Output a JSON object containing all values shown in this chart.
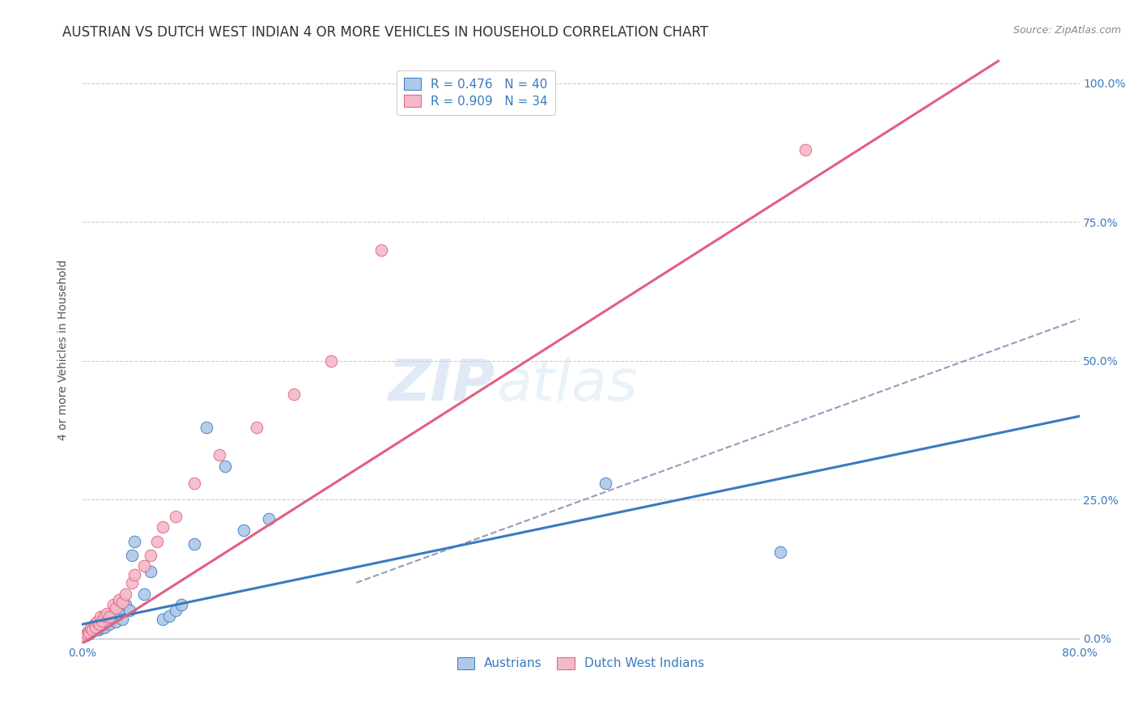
{
  "title": "AUSTRIAN VS DUTCH WEST INDIAN 4 OR MORE VEHICLES IN HOUSEHOLD CORRELATION CHART",
  "source": "Source: ZipAtlas.com",
  "ylabel": "4 or more Vehicles in Household",
  "xlim": [
    0.0,
    0.8
  ],
  "ylim": [
    -0.01,
    1.05
  ],
  "ytick_positions": [
    0.0,
    0.25,
    0.5,
    0.75,
    1.0
  ],
  "ytick_labels_right": [
    "0.0%",
    "25.0%",
    "50.0%",
    "75.0%",
    "100.0%"
  ],
  "legend_entries": [
    {
      "label": "R = 0.476   N = 40"
    },
    {
      "label": "R = 0.909   N = 34"
    }
  ],
  "legend_bottom": [
    "Austrians",
    "Dutch West Indians"
  ],
  "watermark_zip": "ZIP",
  "watermark_atlas": "atlas",
  "austrians_x": [
    0.003,
    0.005,
    0.006,
    0.007,
    0.008,
    0.009,
    0.01,
    0.011,
    0.012,
    0.013,
    0.014,
    0.015,
    0.016,
    0.017,
    0.018,
    0.019,
    0.02,
    0.022,
    0.024,
    0.025,
    0.027,
    0.03,
    0.032,
    0.035,
    0.038,
    0.04,
    0.042,
    0.05,
    0.055,
    0.065,
    0.07,
    0.075,
    0.08,
    0.09,
    0.1,
    0.115,
    0.13,
    0.15,
    0.42,
    0.56
  ],
  "austrians_y": [
    0.005,
    0.01,
    0.008,
    0.015,
    0.012,
    0.02,
    0.018,
    0.025,
    0.022,
    0.015,
    0.03,
    0.018,
    0.025,
    0.03,
    0.02,
    0.035,
    0.038,
    0.025,
    0.04,
    0.038,
    0.03,
    0.045,
    0.035,
    0.06,
    0.05,
    0.15,
    0.175,
    0.08,
    0.12,
    0.035,
    0.04,
    0.05,
    0.06,
    0.17,
    0.38,
    0.31,
    0.195,
    0.215,
    0.28,
    0.155
  ],
  "dutch_x": [
    0.002,
    0.004,
    0.005,
    0.006,
    0.007,
    0.008,
    0.01,
    0.011,
    0.012,
    0.014,
    0.015,
    0.016,
    0.018,
    0.02,
    0.022,
    0.025,
    0.027,
    0.03,
    0.032,
    0.035,
    0.04,
    0.042,
    0.05,
    0.055,
    0.06,
    0.065,
    0.075,
    0.09,
    0.11,
    0.14,
    0.17,
    0.2,
    0.24,
    0.58
  ],
  "dutch_y": [
    0.005,
    0.008,
    0.012,
    0.01,
    0.018,
    0.015,
    0.025,
    0.02,
    0.03,
    0.025,
    0.038,
    0.032,
    0.04,
    0.045,
    0.038,
    0.06,
    0.055,
    0.07,
    0.065,
    0.08,
    0.1,
    0.115,
    0.13,
    0.15,
    0.175,
    0.2,
    0.22,
    0.28,
    0.33,
    0.38,
    0.44,
    0.5,
    0.7,
    0.88
  ],
  "blue_line_x": [
    0.0,
    0.8
  ],
  "blue_line_y": [
    0.025,
    0.4
  ],
  "pink_line_x": [
    0.0,
    0.735
  ],
  "pink_line_y": [
    -0.01,
    1.04
  ],
  "dashed_line_x": [
    0.22,
    0.8
  ],
  "dashed_line_y": [
    0.1,
    0.575
  ],
  "blue_line_color": "#3a7abf",
  "pink_line_color": "#e06080",
  "dashed_line_color": "#9999bb",
  "scatter_blue_face": "#aec8e8",
  "scatter_blue_edge": "#3a7abf",
  "scatter_pink_face": "#f4b8c8",
  "scatter_pink_edge": "#e06080",
  "grid_color": "#cccccc",
  "bg_color": "#ffffff",
  "title_fontsize": 12,
  "axis_label_fontsize": 10,
  "tick_fontsize": 10,
  "legend_fontsize": 11
}
